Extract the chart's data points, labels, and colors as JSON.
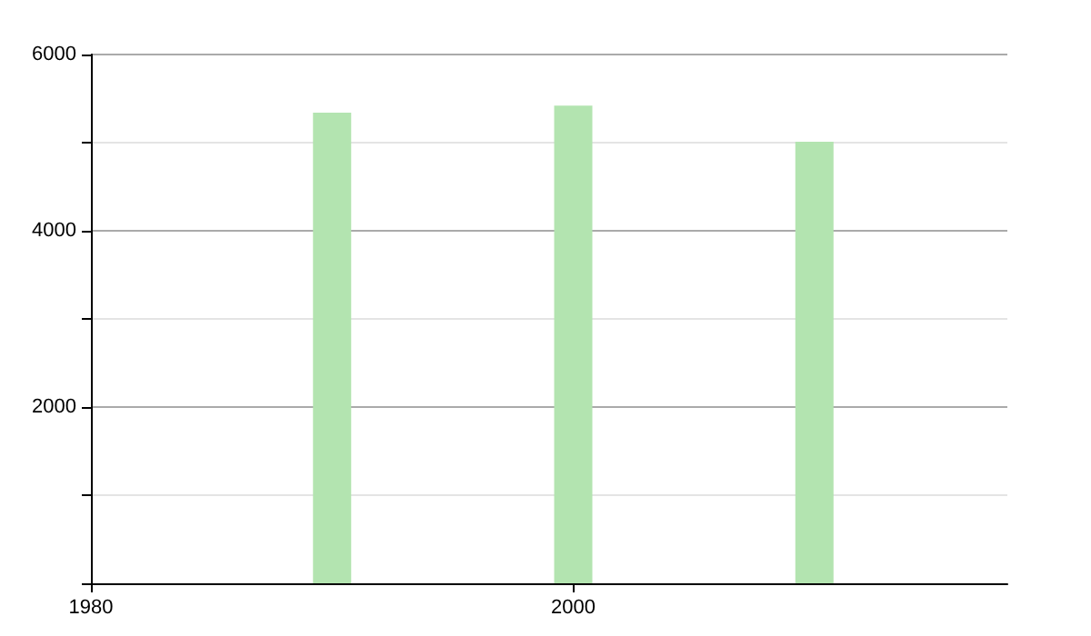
{
  "chart_data": {
    "type": "bar",
    "x": [
      1990,
      2000,
      2010
    ],
    "values": [
      5340,
      5420,
      5010
    ],
    "color": "#b3e4b0",
    "xlim": [
      1980,
      2018
    ],
    "xticks": [
      1980,
      2000
    ],
    "ylim": [
      0,
      6000
    ],
    "yticks": [
      {
        "value": 0,
        "label": null
      },
      {
        "value": 1000,
        "label": null
      },
      2000,
      {
        "value": 3000,
        "label": null
      },
      4000,
      {
        "value": 5000,
        "label": null
      },
      6000
    ],
    "grid": "y"
  }
}
